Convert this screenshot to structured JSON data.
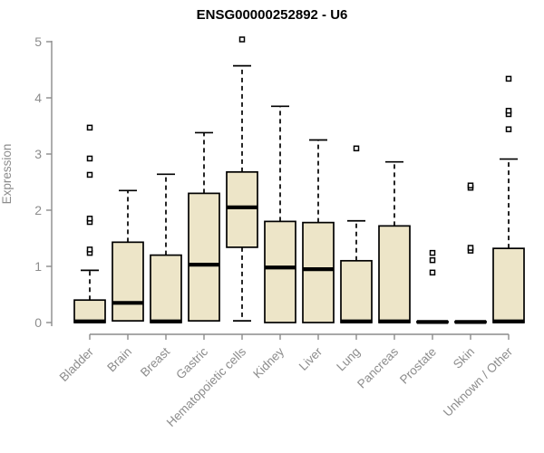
{
  "chart_data": {
    "type": "boxplot",
    "title": "ENSG00000252892 - U6",
    "ylabel": "Expression",
    "xlabel": "",
    "ylim": [
      0,
      5
    ],
    "yticks": [
      0,
      1,
      2,
      3,
      4,
      5
    ],
    "grid": false,
    "legend": false,
    "categories": [
      "Bladder",
      "Brain",
      "Breast",
      "Gastric",
      "Hematopoietic cells",
      "Kidney",
      "Liver",
      "Lung",
      "Pancreas",
      "Prostate",
      "Skin",
      "Unknown / Other"
    ],
    "series": [
      {
        "category": "Bladder",
        "whisker_low": 0,
        "q1": 0,
        "median": 0.02,
        "q3": 0.4,
        "whisker_high": 0.93,
        "outliers": [
          1.24,
          1.3,
          1.79,
          1.85,
          2.63,
          2.92,
          3.47
        ]
      },
      {
        "category": "Brain",
        "whisker_low": 0,
        "q1": 0.03,
        "median": 0.35,
        "q3": 1.43,
        "whisker_high": 2.35,
        "outliers": []
      },
      {
        "category": "Breast",
        "whisker_low": 0,
        "q1": 0,
        "median": 0.02,
        "q3": 1.2,
        "whisker_high": 2.64,
        "outliers": []
      },
      {
        "category": "Gastric",
        "whisker_low": 0.03,
        "q1": 0.03,
        "median": 1.03,
        "q3": 2.3,
        "whisker_high": 3.38,
        "outliers": []
      },
      {
        "category": "Hematopoietic cells",
        "whisker_low": 0.03,
        "q1": 1.34,
        "median": 2.05,
        "q3": 2.68,
        "whisker_high": 4.57,
        "outliers": [
          5.04
        ]
      },
      {
        "category": "Kidney",
        "whisker_low": 0,
        "q1": 0,
        "median": 0.98,
        "q3": 1.8,
        "whisker_high": 3.85,
        "outliers": []
      },
      {
        "category": "Liver",
        "whisker_low": 0,
        "q1": 0,
        "median": 0.95,
        "q3": 1.78,
        "whisker_high": 3.25,
        "outliers": []
      },
      {
        "category": "Lung",
        "whisker_low": 0,
        "q1": 0,
        "median": 0.02,
        "q3": 1.1,
        "whisker_high": 1.81,
        "outliers": [
          3.1
        ]
      },
      {
        "category": "Pancreas",
        "whisker_low": 0,
        "q1": 0,
        "median": 0.02,
        "q3": 1.72,
        "whisker_high": 2.86,
        "outliers": []
      },
      {
        "category": "Prostate",
        "whisker_low": 0,
        "q1": 0,
        "median": 0.01,
        "q3": 0.02,
        "whisker_high": 0.02,
        "outliers": [
          0.89,
          1.11,
          1.24
        ]
      },
      {
        "category": "Skin",
        "whisker_low": 0,
        "q1": 0,
        "median": 0.01,
        "q3": 0.02,
        "whisker_high": 0.02,
        "outliers": [
          1.28,
          1.33,
          2.4,
          2.44
        ]
      },
      {
        "category": "Unknown / Other",
        "whisker_low": 0,
        "q1": 0,
        "median": 0.02,
        "q3": 1.32,
        "whisker_high": 2.91,
        "outliers": [
          3.44,
          3.71,
          3.77,
          4.34
        ]
      }
    ],
    "colors": {
      "box_fill": "#ede5c8",
      "box_border": "#000000",
      "median": "#000000",
      "whisker": "#000000",
      "outlier_stroke": "#000000",
      "outlier_fill": "#ffffff",
      "axis": "#8c8c8c",
      "tick_label": "#8c8c8c",
      "title": "#000000",
      "background": "#ffffff"
    }
  }
}
